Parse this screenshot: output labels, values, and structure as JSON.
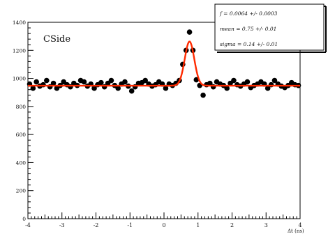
{
  "chart_data": {
    "type": "scatter",
    "title": "",
    "panel_label": "CSide",
    "xlabel": "Δt (ns)",
    "ylabel": "",
    "xlim": [
      -4,
      4
    ],
    "ylim": [
      0,
      1400
    ],
    "xticks": [
      -4,
      -3,
      -2,
      -1,
      0,
      1,
      2,
      3,
      4
    ],
    "yticks": [
      200,
      400,
      600,
      800,
      1000,
      1200,
      1400
    ],
    "grid": false,
    "legend_position": "top-right",
    "stats_box": [
      "f =  0.0064 +/- 0.0003",
      "mean =  0.75 +/- 0.01",
      "sigma =  0.14 +/- 0.01"
    ],
    "series": [
      {
        "kind": "points",
        "color": "#000000",
        "x": [
          -3.95,
          -3.85,
          -3.75,
          -3.65,
          -3.55,
          -3.45,
          -3.35,
          -3.25,
          -3.15,
          -3.05,
          -2.95,
          -2.85,
          -2.75,
          -2.65,
          -2.55,
          -2.45,
          -2.35,
          -2.25,
          -2.15,
          -2.05,
          -1.95,
          -1.85,
          -1.75,
          -1.65,
          -1.55,
          -1.45,
          -1.35,
          -1.25,
          -1.15,
          -1.05,
          -0.95,
          -0.85,
          -0.75,
          -0.65,
          -0.55,
          -0.45,
          -0.35,
          -0.25,
          -0.15,
          -0.05,
          0.05,
          0.15,
          0.25,
          0.35,
          0.45,
          0.55,
          0.65,
          0.75,
          0.85,
          0.95,
          1.05,
          1.15,
          1.25,
          1.35,
          1.45,
          1.55,
          1.65,
          1.75,
          1.85,
          1.95,
          2.05,
          2.15,
          2.25,
          2.35,
          2.45,
          2.55,
          2.65,
          2.75,
          2.85,
          2.95,
          3.05,
          3.15,
          3.25,
          3.35,
          3.45,
          3.55,
          3.65,
          3.75,
          3.85,
          3.95
        ],
        "y": [
          960,
          930,
          975,
          945,
          955,
          985,
          940,
          965,
          930,
          950,
          975,
          955,
          940,
          965,
          950,
          985,
          975,
          945,
          960,
          930,
          955,
          970,
          940,
          965,
          985,
          950,
          930,
          960,
          975,
          945,
          910,
          940,
          965,
          970,
          985,
          960,
          945,
          955,
          975,
          960,
          930,
          960,
          950,
          965,
          985,
          1100,
          1200,
          1330,
          1200,
          990,
          950,
          880,
          955,
          965,
          940,
          975,
          960,
          950,
          930,
          965,
          985,
          955,
          945,
          960,
          975,
          935,
          950,
          960,
          975,
          960,
          930,
          955,
          985,
          960,
          945,
          935,
          950,
          970,
          955,
          950
        ]
      },
      {
        "kind": "fit",
        "color": "#ff2a00",
        "baseline": 948,
        "mean": 0.75,
        "sigma": 0.14,
        "peak_height": 315
      }
    ]
  }
}
